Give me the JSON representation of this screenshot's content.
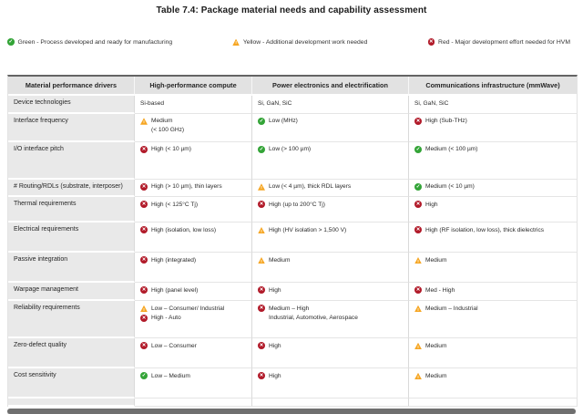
{
  "title": "Table 7.4: Package material needs and capability assessment",
  "colors": {
    "green": "#33a437",
    "yellow": "#f6a623",
    "red": "#b11a29"
  },
  "legend": {
    "items": [
      {
        "status": "green",
        "label": "Green - Process developed and ready for manufacturing"
      },
      {
        "status": "yellow",
        "label": "Yellow - Additional development work needed"
      },
      {
        "status": "red",
        "label": "Red - Major development effort needed for HVM"
      }
    ]
  },
  "table": {
    "columns": [
      "Material performance drivers",
      "High-performance compute",
      "Power electronics and electrification",
      "Communications infrastructure (mmWave)"
    ],
    "rows": [
      {
        "driver": "Device technologies",
        "cells": [
          [
            {
              "status": "none",
              "text": "Si-based"
            }
          ],
          [
            {
              "status": "none",
              "text": "Si, GaN, SiC"
            }
          ],
          [
            {
              "status": "none",
              "text": "Si, GaN, SiC"
            }
          ]
        ]
      },
      {
        "driver": "Interface frequency",
        "cells": [
          [
            {
              "status": "yellow",
              "text": "Medium",
              "sub": "(< 100 GHz)"
            }
          ],
          [
            {
              "status": "green",
              "text": "Low (MHz)"
            }
          ],
          [
            {
              "status": "red",
              "text": "High (Sub-THz)"
            }
          ]
        ]
      },
      {
        "driver": "I/O interface pitch",
        "cells": [
          [
            {
              "status": "red",
              "text": "High (< 10 µm)"
            }
          ],
          [
            {
              "status": "green",
              "text": "Low (> 100 µm)"
            }
          ],
          [
            {
              "status": "green",
              "text": "Medium (< 100 µm)"
            }
          ]
        ]
      },
      {
        "driver": "# Routing/RDLs (substrate, interposer)",
        "cells": [
          [
            {
              "status": "red",
              "text": "High (> 10 µm), thin layers"
            }
          ],
          [
            {
              "status": "yellow",
              "text": "Low (< 4 µm), thick RDL layers"
            }
          ],
          [
            {
              "status": "green",
              "text": "Medium (< 10 µm)"
            }
          ]
        ]
      },
      {
        "driver": "Thermal requirements",
        "cells": [
          [
            {
              "status": "red",
              "text": "High (< 125°C Tj)"
            }
          ],
          [
            {
              "status": "red",
              "text": "High (up to 200°C Tj)"
            }
          ],
          [
            {
              "status": "red",
              "text": "High"
            }
          ]
        ]
      },
      {
        "driver": "Electrical requirements",
        "cells": [
          [
            {
              "status": "red",
              "text": "High (isolation, low loss)"
            }
          ],
          [
            {
              "status": "yellow",
              "text": "High (HV isolation > 1,500 V)"
            }
          ],
          [
            {
              "status": "red",
              "text": "High (RF isolation, low loss), thick dielectrics"
            }
          ]
        ]
      },
      {
        "driver": "Passive integration",
        "cells": [
          [
            {
              "status": "red",
              "text": "High (integrated)"
            }
          ],
          [
            {
              "status": "yellow",
              "text": "Medium"
            }
          ],
          [
            {
              "status": "yellow",
              "text": "Medium"
            }
          ]
        ]
      },
      {
        "driver": "Warpage management",
        "cells": [
          [
            {
              "status": "red",
              "text": "High (panel level)"
            }
          ],
          [
            {
              "status": "red",
              "text": "High"
            }
          ],
          [
            {
              "status": "red",
              "text": "Med - High"
            }
          ]
        ]
      },
      {
        "driver": "Reliability requirements",
        "cells": [
          [
            {
              "status": "yellow",
              "text": "Low – Consumer/ Industrial"
            },
            {
              "status": "red",
              "text": "High - Auto"
            }
          ],
          [
            {
              "status": "red",
              "text": "Medium – High",
              "sub": "Industrial, Automotive, Aerospace"
            }
          ],
          [
            {
              "status": "yellow",
              "text": "Medium – Industrial"
            }
          ]
        ]
      },
      {
        "driver": "Zero-defect quality",
        "cells": [
          [
            {
              "status": "red",
              "text": "Low – Consumer"
            }
          ],
          [
            {
              "status": "red",
              "text": "High"
            }
          ],
          [
            {
              "status": "yellow",
              "text": "Medium"
            }
          ]
        ]
      },
      {
        "driver": "Cost sensitivity",
        "cells": [
          [
            {
              "status": "green",
              "text": "Low – Medium"
            }
          ],
          [
            {
              "status": "red",
              "text": "High"
            }
          ],
          [
            {
              "status": "yellow",
              "text": "Medium"
            }
          ]
        ]
      }
    ]
  }
}
